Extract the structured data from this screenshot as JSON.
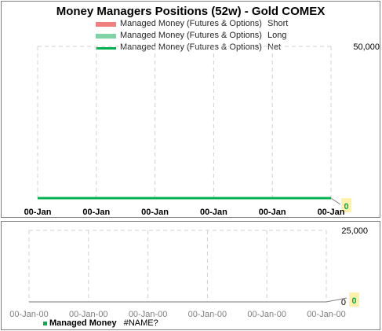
{
  "top_chart": {
    "title": "Money Managers Positions  (52w) - Gold COMEX",
    "legend": [
      {
        "label": "Managed Money (Futures & Options)",
        "suffix": "Short",
        "color": "#f08080"
      },
      {
        "label": "Managed Money (Futures & Options)",
        "suffix": "Long",
        "color": "#7fd3a4"
      },
      {
        "label": "Managed Money (Futures & Options)",
        "suffix": "Net",
        "color": "#00b050"
      }
    ],
    "y_max_label": "50,000",
    "value_label": "0"
  },
  "bottom_chart": {
    "y_max_label": "25,000",
    "y_min_label": "0",
    "value_label": "0",
    "legend_series": "Managed Money",
    "legend_value": "#NAME?"
  },
  "chart_data": [
    {
      "type": "line",
      "title": "Money Managers Positions  (52w) - Gold COMEX",
      "x": [
        "00-Jan",
        "00-Jan",
        "00-Jan",
        "00-Jan",
        "00-Jan",
        "00-Jan"
      ],
      "series": [
        {
          "name": "Managed Money (Futures & Options)  Short",
          "values": [
            0,
            0,
            0,
            0,
            0,
            0
          ]
        },
        {
          "name": "Managed Money (Futures & Options)  Long",
          "values": [
            0,
            0,
            0,
            0,
            0,
            0
          ]
        },
        {
          "name": "Managed Money (Futures & Options)  Net",
          "values": [
            0,
            0,
            0,
            0,
            0,
            0
          ]
        }
      ],
      "y_tick_labels": [
        "50,000"
      ],
      "ylim": [
        0,
        50000
      ],
      "grid": true,
      "colors": {
        "short": "#f08080",
        "long": "#7fd3a4",
        "net": "#00b050"
      }
    },
    {
      "type": "line",
      "x": [
        "00-Jan-00",
        "00-Jan-00",
        "00-Jan-00",
        "00-Jan-00",
        "00-Jan-00",
        "00-Jan-00"
      ],
      "series": [
        {
          "name": "Managed Money",
          "values": [
            0,
            0,
            0,
            0,
            0,
            0
          ]
        }
      ],
      "y_tick_labels": [
        "0",
        "25,000"
      ],
      "ylim": [
        0,
        25000
      ],
      "grid": true,
      "colors": {
        "series": "#a6a6a6"
      }
    }
  ]
}
